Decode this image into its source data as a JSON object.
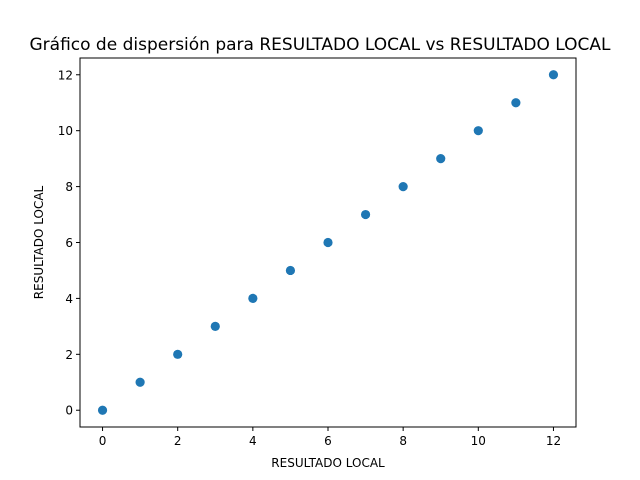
{
  "chart_data": {
    "type": "scatter",
    "title": "Gráfico de dispersión para RESULTADO LOCAL vs RESULTADO LOCAL",
    "xlabel": "RESULTADO LOCAL",
    "ylabel": "RESULTADO LOCAL",
    "xlim": [
      -0.6,
      12.6
    ],
    "ylim": [
      -0.6,
      12.6
    ],
    "xticks": [
      0,
      2,
      4,
      6,
      8,
      10,
      12
    ],
    "yticks": [
      0,
      2,
      4,
      6,
      8,
      10,
      12
    ],
    "grid": false,
    "series": [
      {
        "name": "RESULTADO LOCAL",
        "color": "#1f77b4",
        "x": [
          0,
          1,
          2,
          3,
          4,
          5,
          6,
          7,
          8,
          9,
          10,
          11,
          12
        ],
        "y": [
          0,
          1,
          2,
          3,
          4,
          5,
          6,
          7,
          8,
          9,
          10,
          11,
          12
        ]
      }
    ]
  }
}
